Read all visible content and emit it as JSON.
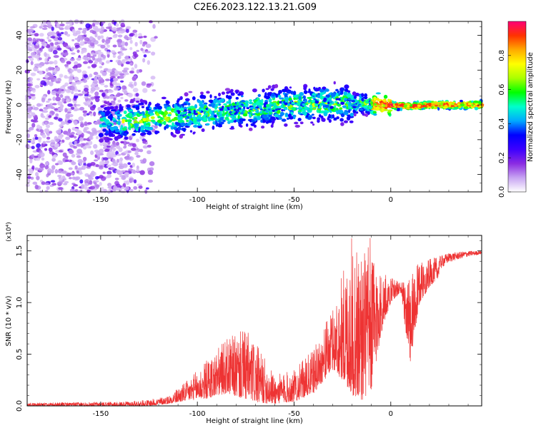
{
  "title": "C2E6.2023.122.13.21.G09",
  "chart_data": [
    {
      "type": "heatmap",
      "name": "spectrogram",
      "xlabel": "Height of straight line (km)",
      "ylabel": "Frequency (Hz)",
      "xlim": [
        -188,
        47
      ],
      "ylim": [
        -50,
        48
      ],
      "xticks": [
        -150,
        -100,
        -50,
        0
      ],
      "yticks": [
        -40,
        -20,
        0,
        20,
        40
      ],
      "ridge": {
        "x": [
          -145,
          -130,
          -110,
          -90,
          -70,
          -50,
          -30,
          -15,
          -5,
          0,
          10,
          20,
          46
        ],
        "freq_center": [
          -10,
          -9,
          -6,
          -4,
          -2,
          0,
          1,
          1,
          0,
          0,
          -1,
          0,
          0
        ]
      },
      "colorbar": {
        "label": "Normalized spectral amplitude",
        "range": [
          0.0,
          1.0
        ],
        "ticks": [
          "0.0",
          "0.2",
          "0.4",
          "0.6",
          "0.8"
        ],
        "colors": [
          "#ffffff",
          "#c7a3f2",
          "#8a2be2",
          "#3c00ff",
          "#0000ff",
          "#00aaff",
          "#00ffcc",
          "#00ff00",
          "#aaff00",
          "#ffff00",
          "#ffaa00",
          "#ff3300",
          "#ff0077"
        ]
      }
    },
    {
      "type": "line",
      "name": "snr",
      "xlabel": "Height of straight line (km)",
      "ylabel": "SNR (10 * v/v)",
      "yscale_note": "(x10⁴)",
      "xlim": [
        -188,
        47
      ],
      "ylim": [
        0.0,
        1.65
      ],
      "xticks": [
        -150,
        -100,
        -50,
        0
      ],
      "yticks": [
        "0.0",
        "0.5",
        "1.0",
        "1.5"
      ],
      "line_color": "#ee3333",
      "envelope": {
        "x": [
          -188,
          -140,
          -125,
          -115,
          -105,
          -95,
          -85,
          -75,
          -68,
          -60,
          -50,
          -40,
          -30,
          -25,
          -20,
          -15,
          -10,
          -5,
          0,
          5,
          10,
          15,
          20,
          25,
          30,
          40,
          46
        ],
        "low": [
          0.0,
          0.0,
          0.0,
          0.02,
          0.05,
          0.07,
          0.12,
          0.06,
          0.03,
          0.02,
          0.04,
          0.12,
          0.35,
          0.25,
          0.1,
          0.05,
          0.15,
          0.7,
          1.0,
          1.1,
          0.4,
          1.0,
          1.15,
          1.25,
          1.35,
          1.42,
          1.45
        ],
        "high": [
          0.03,
          0.04,
          0.06,
          0.1,
          0.25,
          0.45,
          0.65,
          0.75,
          0.55,
          0.3,
          0.35,
          0.55,
          0.95,
          1.3,
          1.65,
          1.55,
          1.65,
          1.3,
          1.25,
          1.2,
          1.25,
          1.4,
          1.42,
          1.45,
          1.48,
          1.5,
          1.5
        ]
      }
    }
  ]
}
